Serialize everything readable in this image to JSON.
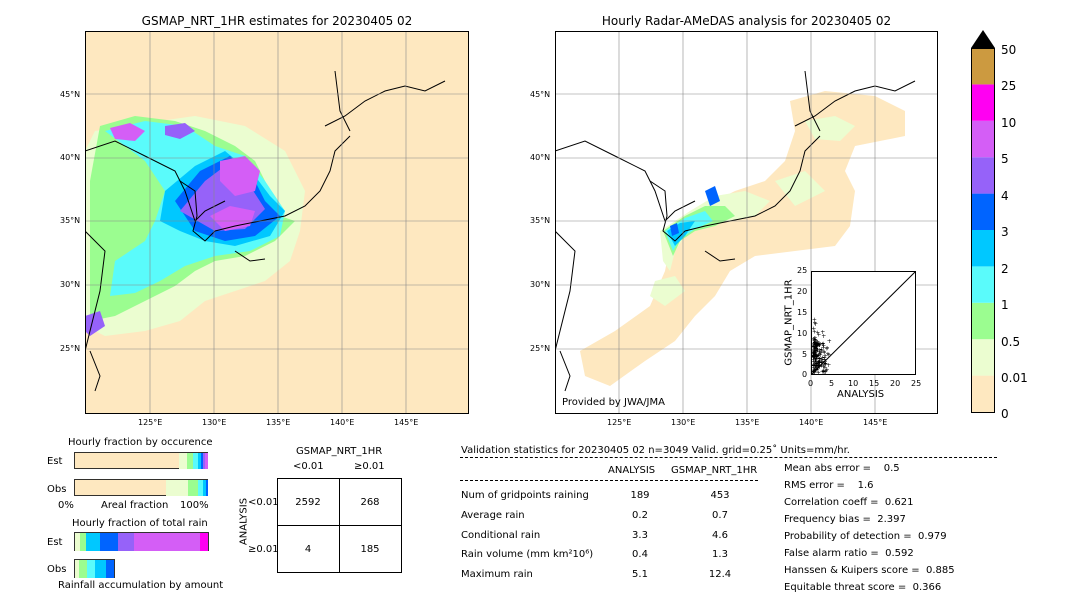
{
  "chart_data": [
    {
      "type": "map",
      "title": "GSMAP_NRT_1HR estimates for 20230405 02",
      "lat_labels": [
        "45°N",
        "40°N",
        "35°N",
        "30°N",
        "25°N"
      ],
      "lon_labels": [
        "125°E",
        "130°E",
        "135°E",
        "140°E",
        "145°E"
      ]
    },
    {
      "type": "map",
      "title": "Hourly Radar-AMeDAS analysis for 20230405 02",
      "lat_labels": [
        "45°N",
        "40°N",
        "35°N",
        "30°N",
        "25°N"
      ],
      "lon_labels": [
        "125°E",
        "130°E",
        "135°E",
        "140°E",
        "145°E"
      ],
      "credit": "Provided by JWA/JMA"
    },
    {
      "type": "scatter",
      "xlabel": "ANALYSIS",
      "ylabel": "GSMAP_NRT_1HR",
      "xlim": [
        0,
        25
      ],
      "ylim": [
        0,
        25
      ],
      "xticks": [
        "0",
        "5",
        "10",
        "15",
        "20",
        "25"
      ],
      "yticks": [
        "0",
        "5",
        "10",
        "15",
        "20",
        "25"
      ]
    },
    {
      "type": "colorbar",
      "levels": [
        "0",
        "0.01",
        "0.5",
        "1",
        "2",
        "3",
        "4",
        "5",
        "10",
        "25",
        "50"
      ],
      "colors": [
        "#fee8c0",
        "#ebfdd0",
        "#9bfd90",
        "#5afbfb",
        "#00c8ff",
        "#0064ff",
        "#9662f9",
        "#d45ef6",
        "#ff00f2",
        "#cc9a40"
      ]
    },
    {
      "type": "bar",
      "title": "Hourly fraction by occurence",
      "rows": [
        "Est",
        "Obs"
      ],
      "xlabel": "Areal fraction",
      "xticks": [
        "0%",
        "100%"
      ]
    },
    {
      "type": "bar",
      "title": "Hourly fraction of total rain",
      "rows": [
        "Est",
        "Obs"
      ],
      "xlabel": "Rainfall accumulation by amount"
    },
    {
      "type": "table",
      "title": "GSMAP_NRT_1HR",
      "col_labels": [
        "<0.01",
        "≥0.01"
      ],
      "row_axis_label": "ANALYSIS",
      "row_labels": [
        "<0.01",
        "≥0.01"
      ],
      "cells": [
        [
          "2592",
          "268"
        ],
        [
          "4",
          "185"
        ]
      ]
    }
  ],
  "validation": {
    "header": "Validation statistics for 20230405 02  n=3049 Valid. grid=0.25˚ Units=mm/hr.",
    "col_analysis": "ANALYSIS",
    "col_gsmap": "GSMAP_NRT_1HR",
    "rows": [
      {
        "label": "Num of gridpoints raining",
        "analysis": "189",
        "gsmap": "453"
      },
      {
        "label": "Average rain",
        "analysis": "0.2",
        "gsmap": "0.7"
      },
      {
        "label": "Conditional rain",
        "analysis": "3.3",
        "gsmap": "4.6"
      },
      {
        "label": "Rain volume (mm km²10⁶)",
        "analysis": "0.4",
        "gsmap": "1.3"
      },
      {
        "label": "Maximum rain",
        "analysis": "5.1",
        "gsmap": "12.4"
      }
    ],
    "scores": [
      "Mean abs error =    0.5",
      "RMS error =    1.6",
      "Correlation coeff =  0.621",
      "Frequency bias =  2.397",
      "Probability of detection =  0.979",
      "False alarm ratio =  0.592",
      "Hanssen & Kuipers score =  0.885",
      "Equitable threat score =  0.366"
    ]
  }
}
